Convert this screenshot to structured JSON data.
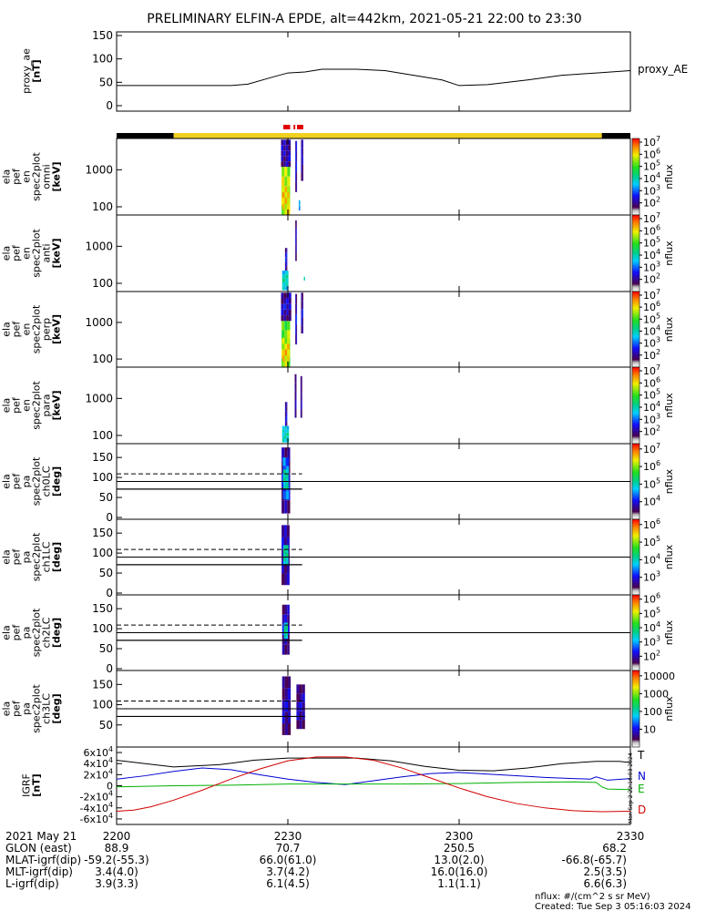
{
  "title": "PRELIMINARY ELFIN-A EPDE, alt=442km, 2021-05-21 22:00 to 23:30",
  "footer": {
    "units": "nflux: #/(cm^2 s sr MeV)",
    "created": "Created: Tue Sep  3 05:16:03 2024",
    "side_stamp": "Mon Sep  2 22:16:03 2024"
  },
  "colors": {
    "trace": "#000000",
    "sunlit": "#f0d020",
    "shadow": "#000000",
    "science": "#e00000",
    "N": "#0000d0",
    "E": "#00b000",
    "D": "#d00000"
  },
  "time_axis": {
    "date_label": "2021 May 21",
    "ticks": [
      "2200",
      "2230",
      "2300",
      "2330"
    ],
    "tick_minutes": [
      0,
      30,
      60,
      90
    ]
  },
  "ephemeris": [
    {
      "label": "GLON (east)",
      "values": [
        "88.9",
        "70.7",
        "250.5",
        "68.2"
      ]
    },
    {
      "label": "MLAT-igrf(dip)",
      "values": [
        "-59.2(-55.3)",
        "66.0(61.0)",
        "13.0(2.0)",
        "-66.8(-65.7)"
      ]
    },
    {
      "label": "MLT-igrf(dip)",
      "values": [
        "3.4(4.0)",
        "3.7(4.2)",
        "16.0(16.0)",
        "2.5(3.5)"
      ]
    },
    {
      "label": "L-igrf(dip)",
      "values": [
        "3.9(3.3)",
        "6.1(4.5)",
        "1.1(1.1)",
        "6.6(6.3)"
      ]
    }
  ],
  "chart_data": [
    {
      "type": "line",
      "name": "proxy_ae",
      "ylabel": [
        "proxy_ae",
        "[nT]"
      ],
      "legend": "proxy_AE",
      "ylim": [
        0,
        150
      ],
      "yticks": [
        0,
        50,
        100,
        150
      ],
      "x_minutes": [
        0,
        10,
        20,
        23,
        27,
        30,
        33,
        36,
        42,
        47,
        52,
        57,
        60,
        65,
        72,
        78,
        84,
        90
      ],
      "values": [
        43,
        43,
        43,
        46,
        60,
        70,
        72,
        78,
        78,
        75,
        65,
        55,
        43,
        45,
        55,
        65,
        70,
        75
      ]
    },
    {
      "type": "bar",
      "name": "sunlight-bar",
      "segments": [
        {
          "start_min": 0,
          "end_min": 10,
          "state": "shadow"
        },
        {
          "start_min": 10,
          "end_min": 85,
          "state": "sunlit"
        },
        {
          "start_min": 85,
          "end_min": 90,
          "state": "shadow"
        }
      ],
      "science_zones": [
        {
          "start_min": 29.2,
          "end_min": 30.4
        },
        {
          "start_min": 31.0,
          "end_min": 31.3
        },
        {
          "start_min": 31.6,
          "end_min": 32.7
        }
      ]
    },
    {
      "type": "heatmap",
      "name": "spec-omni",
      "ylabel": [
        "ela",
        "pef",
        "en",
        "spec2plot",
        "omni",
        "[keV]"
      ],
      "yscale": "log",
      "ylim": [
        60,
        7000
      ],
      "yticks": [
        100,
        1000
      ],
      "zlabel": "nflux",
      "zlim": [
        10,
        10000000
      ],
      "zticks": [
        "10^2",
        "10^3",
        "10^4",
        "10^5",
        "10^6",
        "10^7"
      ],
      "events": [
        {
          "t0": 28.9,
          "t1": 30.4,
          "e0": 60,
          "e1": 1200,
          "level": 0.78
        },
        {
          "t0": 29.0,
          "t1": 30.3,
          "e0": 60,
          "e1": 350,
          "level": 0.85
        },
        {
          "t0": 28.8,
          "t1": 30.5,
          "e0": 1200,
          "e1": 6500,
          "level": 0.12
        },
        {
          "t0": 31.3,
          "t1": 31.6,
          "e0": 250,
          "e1": 6000,
          "level": 0.15
        },
        {
          "t0": 32.3,
          "t1": 32.7,
          "e0": 500,
          "e1": 6500,
          "level": 0.12
        },
        {
          "t0": 31.9,
          "t1": 32.1,
          "e0": 80,
          "e1": 150,
          "level": 0.35
        }
      ]
    },
    {
      "type": "heatmap",
      "name": "spec-anti",
      "ylabel": [
        "ela",
        "pef",
        "en",
        "spec2plot",
        "anti",
        "[keV]"
      ],
      "yscale": "log",
      "ylim": [
        60,
        7000
      ],
      "yticks": [
        100,
        1000
      ],
      "zlabel": "nflux",
      "zlim": [
        10,
        10000000
      ],
      "zticks": [
        "10^2",
        "10^3",
        "10^4",
        "10^5",
        "10^6",
        "10^7"
      ],
      "events": [
        {
          "t0": 29.0,
          "t1": 30.1,
          "e0": 65,
          "e1": 220,
          "level": 0.45
        },
        {
          "t0": 29.5,
          "t1": 29.9,
          "e0": 220,
          "e1": 900,
          "level": 0.15
        },
        {
          "t0": 31.3,
          "t1": 31.5,
          "e0": 400,
          "e1": 5000,
          "level": 0.1
        },
        {
          "t0": 32.8,
          "t1": 32.9,
          "e0": 120,
          "e1": 150,
          "level": 0.5
        }
      ]
    },
    {
      "type": "heatmap",
      "name": "spec-perp",
      "ylabel": [
        "ela",
        "pef",
        "en",
        "spec2plot",
        "perp",
        "[keV]"
      ],
      "yscale": "log",
      "ylim": [
        60,
        7000
      ],
      "yticks": [
        100,
        1000
      ],
      "zlabel": "nflux",
      "zlim": [
        10,
        10000000
      ],
      "zticks": [
        "10^2",
        "10^3",
        "10^4",
        "10^5",
        "10^6",
        "10^7"
      ],
      "events": [
        {
          "t0": 28.9,
          "t1": 30.4,
          "e0": 60,
          "e1": 1100,
          "level": 0.74
        },
        {
          "t0": 29.0,
          "t1": 30.3,
          "e0": 60,
          "e1": 380,
          "level": 0.83
        },
        {
          "t0": 28.8,
          "t1": 30.6,
          "e0": 1100,
          "e1": 6500,
          "level": 0.12
        },
        {
          "t0": 31.3,
          "t1": 31.6,
          "e0": 250,
          "e1": 6000,
          "level": 0.14
        },
        {
          "t0": 32.3,
          "t1": 32.7,
          "e0": 500,
          "e1": 6500,
          "level": 0.12
        }
      ]
    },
    {
      "type": "heatmap",
      "name": "spec-para",
      "ylabel": [
        "ela",
        "pef",
        "en",
        "spec2plot",
        "para",
        "[keV]"
      ],
      "yscale": "log",
      "ylim": [
        60,
        7000
      ],
      "yticks": [
        100,
        1000
      ],
      "zlabel": "nflux",
      "zlim": [
        10,
        10000000
      ],
      "zticks": [
        "10^2",
        "10^3",
        "10^4",
        "10^5",
        "10^6",
        "10^7"
      ],
      "events": [
        {
          "t0": 29.0,
          "t1": 30.2,
          "e0": 65,
          "e1": 180,
          "level": 0.45
        },
        {
          "t0": 29.5,
          "t1": 29.9,
          "e0": 180,
          "e1": 800,
          "level": 0.14
        },
        {
          "t0": 31.2,
          "t1": 31.5,
          "e0": 300,
          "e1": 4500,
          "level": 0.1
        },
        {
          "t0": 32.2,
          "t1": 32.5,
          "e0": 300,
          "e1": 4000,
          "level": 0.1
        }
      ]
    },
    {
      "type": "heatmap",
      "name": "pa-ch0",
      "ylabel": [
        "ela",
        "pef",
        "pa",
        "spec2plot",
        "ch0LC",
        "[deg]"
      ],
      "ylim": [
        0,
        180
      ],
      "yticks": [
        0,
        50,
        100,
        150
      ],
      "zlabel": "nflux",
      "zlim": [
        1000,
        10000000
      ],
      "zticks": [
        "10^4",
        "10^5",
        "10^6",
        "10^7"
      ],
      "events": [
        {
          "t0": 28.9,
          "t1": 30.4,
          "e0": 10,
          "e1": 175,
          "level": 0.1
        },
        {
          "t0": 29.1,
          "t1": 30.2,
          "e0": 45,
          "e1": 150,
          "level": 0.3
        },
        {
          "t0": 29.2,
          "t1": 30.1,
          "e0": 70,
          "e1": 120,
          "level": 0.5
        }
      ],
      "lc_solid": [
        {
          "x_minutes": [
            0,
            32.5
          ],
          "values": [
            71,
            71
          ]
        }
      ],
      "lc_dash": [
        {
          "x_minutes": [
            0,
            32.5
          ],
          "values": [
            109,
            109
          ]
        }
      ],
      "lc_upper": 90
    },
    {
      "type": "heatmap",
      "name": "pa-ch1",
      "ylabel": [
        "ela",
        "pef",
        "pa",
        "spec2plot",
        "ch1LC",
        "[deg]"
      ],
      "ylim": [
        0,
        180
      ],
      "yticks": [
        0,
        50,
        100,
        150
      ],
      "zlabel": "nflux",
      "zlim": [
        1000,
        1000000
      ],
      "zticks": [
        "10^3",
        "10^4",
        "10^5",
        "10^6"
      ],
      "events": [
        {
          "t0": 28.9,
          "t1": 30.3,
          "e0": 20,
          "e1": 170,
          "level": 0.12
        },
        {
          "t0": 29.2,
          "t1": 30.1,
          "e0": 70,
          "e1": 120,
          "level": 0.5
        }
      ],
      "lc_solid": [
        {
          "x_minutes": [
            0,
            32.5
          ],
          "values": [
            71,
            71
          ]
        }
      ],
      "lc_dash": [
        {
          "x_minutes": [
            0,
            32.5
          ],
          "values": [
            109,
            109
          ]
        }
      ],
      "lc_upper": 90
    },
    {
      "type": "heatmap",
      "name": "pa-ch2",
      "ylabel": [
        "ela",
        "pef",
        "pa",
        "spec2plot",
        "ch2LC",
        "[deg]"
      ],
      "ylim": [
        0,
        180
      ],
      "yticks": [
        0,
        50,
        100,
        150
      ],
      "zlabel": "nflux",
      "zlim": [
        100,
        1000000
      ],
      "zticks": [
        "10^2",
        "10^3",
        "10^4",
        "10^5",
        "10^6"
      ],
      "events": [
        {
          "t0": 29.0,
          "t1": 30.3,
          "e0": 35,
          "e1": 160,
          "level": 0.12
        },
        {
          "t0": 29.3,
          "t1": 30.0,
          "e0": 75,
          "e1": 115,
          "level": 0.5
        }
      ],
      "lc_solid": [
        {
          "x_minutes": [
            0,
            32.5
          ],
          "values": [
            71,
            71
          ]
        }
      ],
      "lc_dash": [
        {
          "x_minutes": [
            0,
            32.5
          ],
          "values": [
            109,
            109
          ]
        }
      ],
      "lc_upper": 90
    },
    {
      "type": "heatmap",
      "name": "pa-ch3",
      "ylabel": [
        "ela",
        "pef",
        "pa",
        "spec2plot",
        "ch3LC",
        "[deg]"
      ],
      "ylim": [
        0,
        180
      ],
      "yticks": [
        50,
        100,
        150
      ],
      "zlabel": "nflux",
      "zlim": [
        10,
        10000
      ],
      "zticks": [
        "10",
        "100",
        "1000",
        "10000"
      ],
      "events": [
        {
          "t0": 29.0,
          "t1": 30.5,
          "e0": 25,
          "e1": 170,
          "level": 0.1
        },
        {
          "t0": 31.5,
          "t1": 33.0,
          "e0": 40,
          "e1": 150,
          "level": 0.1
        }
      ],
      "lc_solid": [
        {
          "x_minutes": [
            0,
            33
          ],
          "values": [
            71,
            71
          ]
        }
      ],
      "lc_dash": [
        {
          "x_minutes": [
            0,
            33
          ],
          "values": [
            109,
            109
          ]
        }
      ],
      "lc_upper": 90
    },
    {
      "type": "line",
      "name": "igrf",
      "ylabel": [
        "IGRF",
        "[nT]"
      ],
      "ylim": [
        -65000,
        65000
      ],
      "yticks": [
        -60000,
        -40000,
        -20000,
        0,
        20000,
        40000,
        60000
      ],
      "ytick_labels": [
        "-6x10^4",
        "-4x10^4",
        "-2x10^4",
        "0",
        "2x10^4",
        "4x10^4",
        "6x10^4"
      ],
      "series": [
        {
          "name": "T",
          "x_minutes": [
            0,
            5,
            10,
            18,
            24,
            30,
            36,
            42,
            48,
            54,
            60,
            66,
            72,
            78,
            84,
            88,
            90
          ],
          "values": [
            46000,
            40000,
            34000,
            38000,
            46000,
            50000,
            50000,
            50000,
            45000,
            35000,
            28000,
            27000,
            32000,
            40000,
            44000,
            44000,
            42000
          ]
        },
        {
          "name": "N",
          "x_minutes": [
            0,
            5,
            10,
            15,
            20,
            25,
            30,
            35,
            40,
            45,
            50,
            55,
            60,
            65,
            70,
            75,
            80,
            83,
            84,
            86,
            90
          ],
          "values": [
            12000,
            18000,
            26000,
            32000,
            29000,
            20000,
            12000,
            6000,
            2000,
            9000,
            16000,
            22000,
            24000,
            21000,
            18000,
            15000,
            13000,
            12000,
            16000,
            10000,
            13000
          ]
        },
        {
          "name": "E",
          "x_minutes": [
            0,
            10,
            20,
            25,
            30,
            40,
            50,
            60,
            70,
            80,
            84,
            85,
            86,
            90
          ],
          "values": [
            -2000,
            0,
            1000,
            2000,
            3000,
            3000,
            3000,
            4000,
            6000,
            7000,
            6000,
            -2000,
            -6000,
            -7000
          ]
        },
        {
          "name": "D",
          "x_minutes": [
            0,
            3,
            6,
            10,
            15,
            20,
            25,
            30,
            35,
            40,
            45,
            50,
            55,
            60,
            65,
            70,
            75,
            80,
            85,
            90
          ],
          "values": [
            -46000,
            -44000,
            -38000,
            -26000,
            -8000,
            12000,
            30000,
            45000,
            52000,
            52000,
            46000,
            32000,
            14000,
            -4000,
            -20000,
            -32000,
            -40000,
            -45000,
            -47000,
            -46000
          ]
        }
      ]
    }
  ]
}
